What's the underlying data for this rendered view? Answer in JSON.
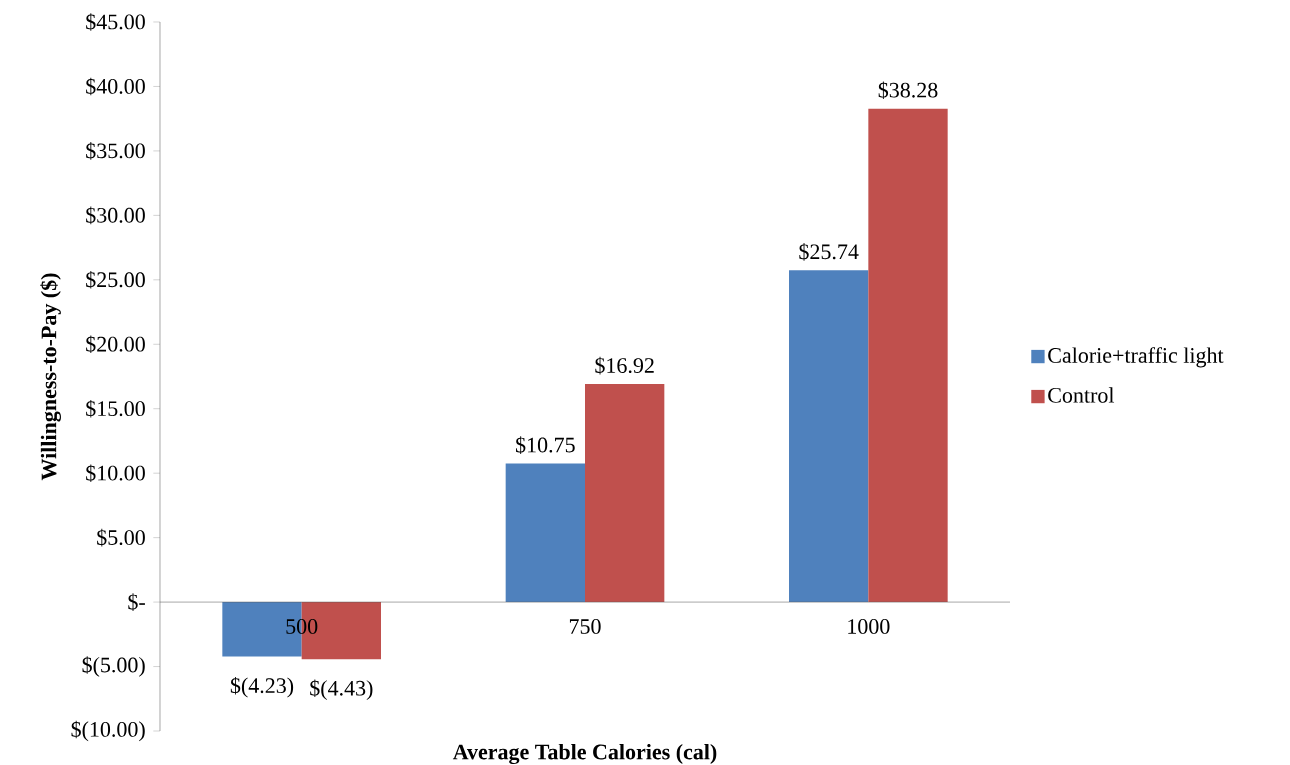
{
  "chart_data": {
    "type": "bar",
    "xlabel": "Average Table Calories (cal)",
    "ylabel": "Willingness-to-Pay ($)",
    "categories": [
      "500",
      "750",
      "1000"
    ],
    "series": [
      {
        "name": "Calorie+traffic light",
        "color": "#4f81bd",
        "values": [
          -4.23,
          10.75,
          25.74
        ],
        "value_labels": [
          "$(4.23)",
          "$10.75",
          "$25.74"
        ]
      },
      {
        "name": "Control",
        "color": "#c0504d",
        "values": [
          -4.43,
          16.92,
          38.28
        ],
        "value_labels": [
          "$(4.43)",
          "$16.92",
          "$38.28"
        ]
      }
    ],
    "ylim": [
      -10,
      45
    ],
    "yticks": [
      {
        "value": -10,
        "label": "$(10.00)"
      },
      {
        "value": -5,
        "label": "$(5.00)"
      },
      {
        "value": 0,
        "label": "$-"
      },
      {
        "value": 5,
        "label": "$5.00"
      },
      {
        "value": 10,
        "label": "$10.00"
      },
      {
        "value": 15,
        "label": "$15.00"
      },
      {
        "value": 20,
        "label": "$20.00"
      },
      {
        "value": 25,
        "label": "$25.00"
      },
      {
        "value": 30,
        "label": "$30.00"
      },
      {
        "value": 35,
        "label": "$35.00"
      },
      {
        "value": 40,
        "label": "$40.00"
      },
      {
        "value": 45,
        "label": "$45.00"
      }
    ],
    "grid": false,
    "legend": "right"
  }
}
